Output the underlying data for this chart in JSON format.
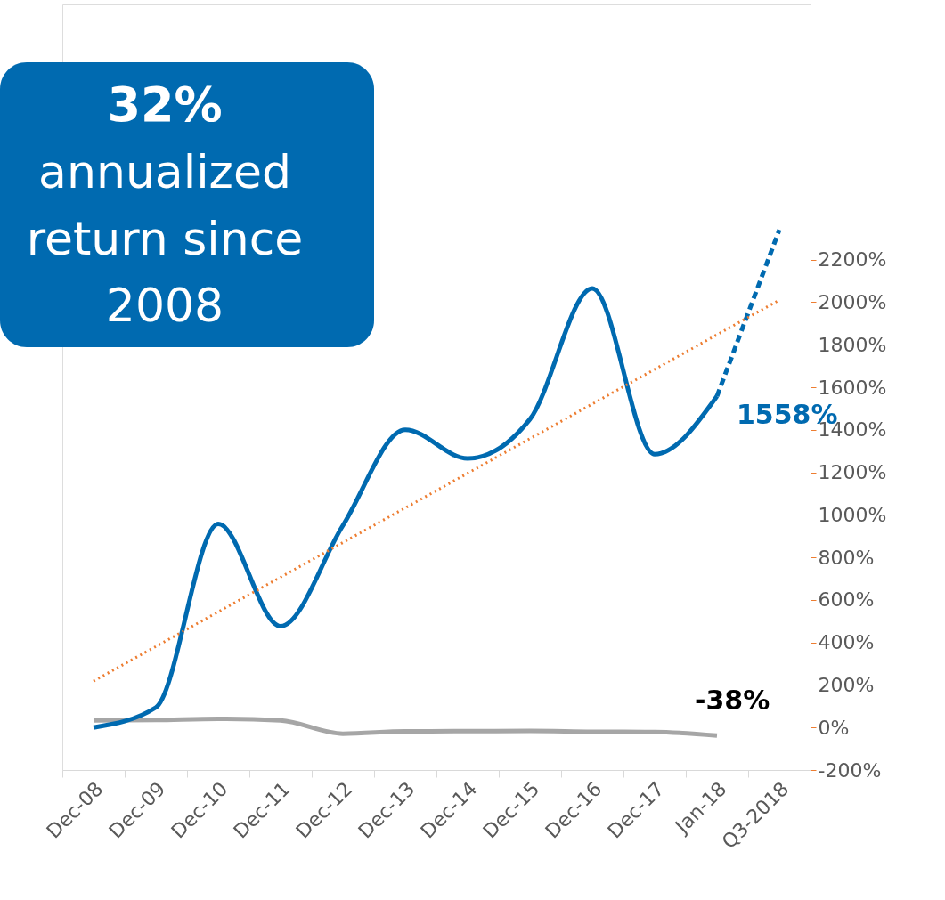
{
  "chart_data": {
    "type": "line",
    "categories": [
      "Dec-08",
      "Dec-09",
      "Dec-10",
      "Dec-11",
      "Dec-12",
      "Dec-13",
      "Dec-14",
      "Dec-15",
      "Dec-16",
      "Dec-17",
      "Jan-18",
      "Q3-2018"
    ],
    "series": [
      {
        "color": "#a6a6a6",
        "values": [
          33,
          35,
          41,
          33,
          -29,
          -18,
          -17,
          -16,
          -20,
          -21,
          -38,
          null
        ],
        "value_labels": [
          null,
          null,
          null,
          null,
          null,
          null,
          null,
          null,
          null,
          null,
          "-38%",
          null
        ]
      },
      {
        "color": "#006ab0",
        "values": [
          0,
          94,
          957,
          476,
          950,
          1400,
          1265,
          1450,
          2065,
          1285,
          1558,
          null
        ],
        "value_labels": [
          null,
          null,
          null,
          null,
          null,
          null,
          null,
          null,
          null,
          null,
          "1558%",
          null
        ]
      },
      {
        "type": "line",
        "color": "#006ab0",
        "line_style": "dashed",
        "values": [
          null,
          null,
          null,
          null,
          null,
          null,
          null,
          null,
          null,
          null,
          1558,
          2340
        ]
      },
      {
        "type": "line",
        "color": "#ed7d31",
        "line_style": "dotted",
        "values": [
          218,
          null,
          null,
          null,
          null,
          null,
          null,
          null,
          null,
          null,
          null,
          2010
        ]
      }
    ],
    "ylim": [
      -200,
      3400
    ],
    "yticks": [
      {
        "value": -200,
        "label": "-200%"
      },
      {
        "value": 0,
        "label": "0%"
      },
      {
        "value": 200,
        "label": "200%"
      },
      {
        "value": 400,
        "label": "400%"
      },
      {
        "value": 600,
        "label": "600%"
      },
      {
        "value": 800,
        "label": "800%"
      },
      {
        "value": 1000,
        "label": "1000%"
      },
      {
        "value": 1200,
        "label": "1200%"
      },
      {
        "value": 1400,
        "label": "1400%"
      },
      {
        "value": 1600,
        "label": "1600%"
      },
      {
        "value": 1800,
        "label": "1800%"
      },
      {
        "value": 2000,
        "label": "2000%"
      },
      {
        "value": 2200,
        "label": "2200%"
      }
    ],
    "annotations": [
      "32%\nannualized\nreturn since\n2008"
    ],
    "grid": false,
    "legend": false,
    "marker": "none",
    "line_style": "solid"
  }
}
